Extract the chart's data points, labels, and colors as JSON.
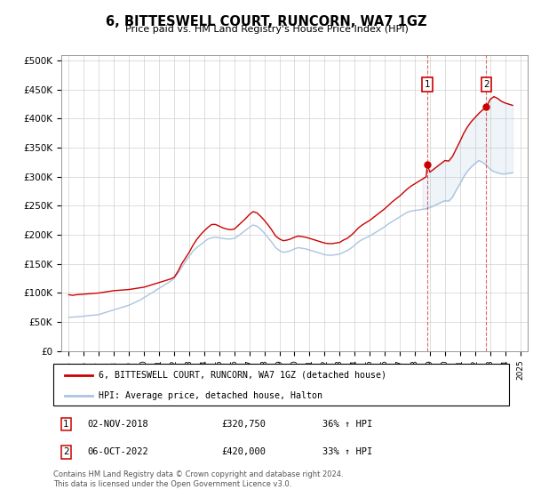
{
  "title": "6, BITTESWELL COURT, RUNCORN, WA7 1GZ",
  "subtitle": "Price paid vs. HM Land Registry's House Price Index (HPI)",
  "legend_line1": "6, BITTESWELL COURT, RUNCORN, WA7 1GZ (detached house)",
  "legend_line2": "HPI: Average price, detached house, Halton",
  "footnote": "Contains HM Land Registry data © Crown copyright and database right 2024.\nThis data is licensed under the Open Government Licence v3.0.",
  "sale1_date": "02-NOV-2018",
  "sale1_price": "£320,750",
  "sale1_hpi": "36% ↑ HPI",
  "sale2_date": "06-OCT-2022",
  "sale2_price": "£420,000",
  "sale2_hpi": "33% ↑ HPI",
  "hpi_color": "#aac4e0",
  "price_color": "#cc0000",
  "marker1_x": 2018.83,
  "marker1_y": 320750,
  "marker2_x": 2022.75,
  "marker2_y": 420000,
  "ylim": [
    0,
    510000
  ],
  "xlim": [
    1994.5,
    2025.5
  ],
  "yticks": [
    0,
    50000,
    100000,
    150000,
    200000,
    250000,
    300000,
    350000,
    400000,
    450000,
    500000
  ],
  "ytick_labels": [
    "£0",
    "£50K",
    "£100K",
    "£150K",
    "£200K",
    "£250K",
    "£300K",
    "£350K",
    "£400K",
    "£450K",
    "£500K"
  ],
  "xticks": [
    1995,
    1996,
    1997,
    1998,
    1999,
    2000,
    2001,
    2002,
    2003,
    2004,
    2005,
    2006,
    2007,
    2008,
    2009,
    2010,
    2011,
    2012,
    2013,
    2014,
    2015,
    2016,
    2017,
    2018,
    2019,
    2020,
    2021,
    2022,
    2023,
    2024,
    2025
  ],
  "hpi_data": [
    [
      1995.0,
      58000
    ],
    [
      1995.25,
      58500
    ],
    [
      1995.5,
      59000
    ],
    [
      1995.75,
      59500
    ],
    [
      1996.0,
      60000
    ],
    [
      1996.25,
      61000
    ],
    [
      1996.5,
      61500
    ],
    [
      1996.75,
      62000
    ],
    [
      1997.0,
      63000
    ],
    [
      1997.25,
      65000
    ],
    [
      1997.5,
      67000
    ],
    [
      1997.75,
      69000
    ],
    [
      1998.0,
      71000
    ],
    [
      1998.25,
      73000
    ],
    [
      1998.5,
      75000
    ],
    [
      1998.75,
      77000
    ],
    [
      1999.0,
      79000
    ],
    [
      1999.25,
      82000
    ],
    [
      1999.5,
      85000
    ],
    [
      1999.75,
      88000
    ],
    [
      2000.0,
      92000
    ],
    [
      2000.25,
      96000
    ],
    [
      2000.5,
      100000
    ],
    [
      2000.75,
      104000
    ],
    [
      2001.0,
      108000
    ],
    [
      2001.25,
      112000
    ],
    [
      2001.5,
      116000
    ],
    [
      2001.75,
      120000
    ],
    [
      2002.0,
      125000
    ],
    [
      2002.25,
      134000
    ],
    [
      2002.5,
      144000
    ],
    [
      2002.75,
      154000
    ],
    [
      2003.0,
      163000
    ],
    [
      2003.25,
      172000
    ],
    [
      2003.5,
      178000
    ],
    [
      2003.75,
      183000
    ],
    [
      2004.0,
      188000
    ],
    [
      2004.25,
      193000
    ],
    [
      2004.5,
      195000
    ],
    [
      2004.75,
      196000
    ],
    [
      2005.0,
      195000
    ],
    [
      2005.25,
      194000
    ],
    [
      2005.5,
      193000
    ],
    [
      2005.75,
      193000
    ],
    [
      2006.0,
      194000
    ],
    [
      2006.25,
      198000
    ],
    [
      2006.5,
      203000
    ],
    [
      2006.75,
      208000
    ],
    [
      2007.0,
      213000
    ],
    [
      2007.25,
      217000
    ],
    [
      2007.5,
      215000
    ],
    [
      2007.75,
      210000
    ],
    [
      2008.0,
      203000
    ],
    [
      2008.25,
      195000
    ],
    [
      2008.5,
      187000
    ],
    [
      2008.75,
      178000
    ],
    [
      2009.0,
      173000
    ],
    [
      2009.25,
      170000
    ],
    [
      2009.5,
      171000
    ],
    [
      2009.75,
      173000
    ],
    [
      2010.0,
      176000
    ],
    [
      2010.25,
      178000
    ],
    [
      2010.5,
      177000
    ],
    [
      2010.75,
      176000
    ],
    [
      2011.0,
      174000
    ],
    [
      2011.25,
      172000
    ],
    [
      2011.5,
      170000
    ],
    [
      2011.75,
      168000
    ],
    [
      2012.0,
      166000
    ],
    [
      2012.25,
      165000
    ],
    [
      2012.5,
      165000
    ],
    [
      2012.75,
      166000
    ],
    [
      2013.0,
      167000
    ],
    [
      2013.25,
      170000
    ],
    [
      2013.5,
      173000
    ],
    [
      2013.75,
      177000
    ],
    [
      2014.0,
      182000
    ],
    [
      2014.25,
      188000
    ],
    [
      2014.5,
      192000
    ],
    [
      2014.75,
      195000
    ],
    [
      2015.0,
      198000
    ],
    [
      2015.25,
      202000
    ],
    [
      2015.5,
      206000
    ],
    [
      2015.75,
      210000
    ],
    [
      2016.0,
      214000
    ],
    [
      2016.25,
      219000
    ],
    [
      2016.5,
      223000
    ],
    [
      2016.75,
      227000
    ],
    [
      2017.0,
      231000
    ],
    [
      2017.25,
      235000
    ],
    [
      2017.5,
      239000
    ],
    [
      2017.75,
      241000
    ],
    [
      2018.0,
      242000
    ],
    [
      2018.25,
      243000
    ],
    [
      2018.5,
      244000
    ],
    [
      2018.75,
      245000
    ],
    [
      2019.0,
      247000
    ],
    [
      2019.25,
      250000
    ],
    [
      2019.5,
      253000
    ],
    [
      2019.75,
      256000
    ],
    [
      2020.0,
      259000
    ],
    [
      2020.25,
      258000
    ],
    [
      2020.5,
      265000
    ],
    [
      2020.75,
      277000
    ],
    [
      2021.0,
      288000
    ],
    [
      2021.25,
      300000
    ],
    [
      2021.5,
      310000
    ],
    [
      2021.75,
      317000
    ],
    [
      2022.0,
      323000
    ],
    [
      2022.25,
      328000
    ],
    [
      2022.5,
      325000
    ],
    [
      2022.75,
      320000
    ],
    [
      2023.0,
      313000
    ],
    [
      2023.25,
      309000
    ],
    [
      2023.5,
      307000
    ],
    [
      2023.75,
      305000
    ],
    [
      2024.0,
      305000
    ],
    [
      2024.25,
      306000
    ],
    [
      2024.5,
      307000
    ]
  ],
  "price_data": [
    [
      1995.0,
      97000
    ],
    [
      1995.25,
      96000
    ],
    [
      1995.5,
      97000
    ],
    [
      1995.75,
      97500
    ],
    [
      1996.0,
      98000
    ],
    [
      1996.25,
      98500
    ],
    [
      1996.5,
      99000
    ],
    [
      1996.75,
      99500
    ],
    [
      1997.0,
      100000
    ],
    [
      1997.25,
      101000
    ],
    [
      1997.5,
      102000
    ],
    [
      1997.75,
      103000
    ],
    [
      1998.0,
      104000
    ],
    [
      1998.25,
      104500
    ],
    [
      1998.5,
      105000
    ],
    [
      1998.75,
      105500
    ],
    [
      1999.0,
      106000
    ],
    [
      1999.25,
      107000
    ],
    [
      1999.5,
      108000
    ],
    [
      1999.75,
      109000
    ],
    [
      2000.0,
      110000
    ],
    [
      2000.25,
      112000
    ],
    [
      2000.5,
      114000
    ],
    [
      2000.75,
      116000
    ],
    [
      2001.0,
      118000
    ],
    [
      2001.25,
      120000
    ],
    [
      2001.5,
      122000
    ],
    [
      2001.75,
      124000
    ],
    [
      2002.0,
      127000
    ],
    [
      2002.25,
      137000
    ],
    [
      2002.5,
      150000
    ],
    [
      2002.75,
      160000
    ],
    [
      2003.0,
      170000
    ],
    [
      2003.25,
      182000
    ],
    [
      2003.5,
      192000
    ],
    [
      2003.75,
      200000
    ],
    [
      2004.0,
      207000
    ],
    [
      2004.25,
      213000
    ],
    [
      2004.5,
      218000
    ],
    [
      2004.75,
      218000
    ],
    [
      2005.0,
      215000
    ],
    [
      2005.25,
      212000
    ],
    [
      2005.5,
      210000
    ],
    [
      2005.75,
      209000
    ],
    [
      2006.0,
      210000
    ],
    [
      2006.25,
      216000
    ],
    [
      2006.5,
      222000
    ],
    [
      2006.75,
      228000
    ],
    [
      2007.0,
      235000
    ],
    [
      2007.25,
      240000
    ],
    [
      2007.5,
      238000
    ],
    [
      2007.75,
      232000
    ],
    [
      2008.0,
      225000
    ],
    [
      2008.25,
      217000
    ],
    [
      2008.5,
      208000
    ],
    [
      2008.75,
      198000
    ],
    [
      2009.0,
      193000
    ],
    [
      2009.25,
      190000
    ],
    [
      2009.5,
      191000
    ],
    [
      2009.75,
      193000
    ],
    [
      2010.0,
      196000
    ],
    [
      2010.25,
      198000
    ],
    [
      2010.5,
      197000
    ],
    [
      2010.75,
      196000
    ],
    [
      2011.0,
      194000
    ],
    [
      2011.25,
      192000
    ],
    [
      2011.5,
      190000
    ],
    [
      2011.75,
      188000
    ],
    [
      2012.0,
      186000
    ],
    [
      2012.25,
      185000
    ],
    [
      2012.5,
      185000
    ],
    [
      2012.75,
      186000
    ],
    [
      2013.0,
      187000
    ],
    [
      2013.25,
      191000
    ],
    [
      2013.5,
      194000
    ],
    [
      2013.75,
      199000
    ],
    [
      2014.0,
      205000
    ],
    [
      2014.25,
      212000
    ],
    [
      2014.5,
      217000
    ],
    [
      2014.75,
      221000
    ],
    [
      2015.0,
      225000
    ],
    [
      2015.25,
      230000
    ],
    [
      2015.5,
      235000
    ],
    [
      2015.75,
      240000
    ],
    [
      2016.0,
      245000
    ],
    [
      2016.25,
      251000
    ],
    [
      2016.5,
      257000
    ],
    [
      2016.75,
      262000
    ],
    [
      2017.0,
      267000
    ],
    [
      2017.25,
      273000
    ],
    [
      2017.5,
      279000
    ],
    [
      2017.75,
      284000
    ],
    [
      2018.0,
      288000
    ],
    [
      2018.25,
      292000
    ],
    [
      2018.5,
      296000
    ],
    [
      2018.75,
      300000
    ],
    [
      2018.83,
      320750
    ],
    [
      2019.0,
      308000
    ],
    [
      2019.25,
      313000
    ],
    [
      2019.5,
      318000
    ],
    [
      2019.75,
      323000
    ],
    [
      2020.0,
      328000
    ],
    [
      2020.25,
      327000
    ],
    [
      2020.5,
      335000
    ],
    [
      2020.75,
      348000
    ],
    [
      2021.0,
      361000
    ],
    [
      2021.25,
      375000
    ],
    [
      2021.5,
      386000
    ],
    [
      2021.75,
      395000
    ],
    [
      2022.0,
      402000
    ],
    [
      2022.25,
      409000
    ],
    [
      2022.5,
      415000
    ],
    [
      2022.75,
      420000
    ],
    [
      2023.0,
      433000
    ],
    [
      2023.25,
      438000
    ],
    [
      2023.5,
      435000
    ],
    [
      2023.75,
      430000
    ],
    [
      2024.0,
      427000
    ],
    [
      2024.25,
      425000
    ],
    [
      2024.5,
      423000
    ]
  ]
}
